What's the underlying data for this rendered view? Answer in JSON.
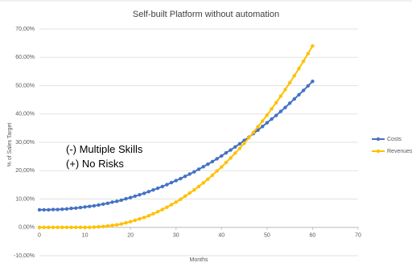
{
  "chart_data": {
    "type": "line",
    "title": "Self-built Platform without automation",
    "x_label": "Months",
    "y_label": "% of Sales Target",
    "annotations": [
      "(-) Multiple Skills",
      "(+) No Risks"
    ],
    "x": [
      0,
      1,
      2,
      3,
      4,
      5,
      6,
      7,
      8,
      9,
      10,
      11,
      12,
      13,
      14,
      15,
      16,
      17,
      18,
      19,
      20,
      21,
      22,
      23,
      24,
      25,
      26,
      27,
      28,
      29,
      30,
      31,
      32,
      33,
      34,
      35,
      36,
      37,
      38,
      39,
      40,
      41,
      42,
      43,
      44,
      45,
      46,
      47,
      48,
      49,
      50,
      51,
      52,
      53,
      54,
      55,
      56,
      57,
      58,
      59,
      60
    ],
    "series": [
      {
        "name": "Costs",
        "color": "#4472c4",
        "values": [
          6.2,
          6.2,
          6.2,
          6.3,
          6.3,
          6.4,
          6.5,
          6.7,
          6.8,
          7.0,
          7.2,
          7.4,
          7.6,
          7.9,
          8.2,
          8.5,
          8.9,
          9.2,
          9.6,
          10.1,
          10.5,
          11.0,
          11.5,
          12.0,
          12.6,
          13.2,
          13.8,
          14.4,
          15.1,
          15.8,
          16.5,
          17.2,
          18.0,
          18.8,
          19.6,
          20.5,
          21.4,
          22.3,
          23.2,
          24.2,
          25.2,
          26.3,
          27.3,
          28.4,
          29.5,
          30.7,
          31.8,
          33.1,
          34.3,
          35.6,
          36.9,
          38.2,
          39.5,
          40.9,
          42.3,
          43.8,
          45.3,
          46.8,
          48.3,
          49.9,
          51.5
        ]
      },
      {
        "name": "Revenues",
        "color": "#ffc000",
        "values": [
          0,
          0,
          0,
          0,
          0,
          0,
          0,
          0,
          0,
          0,
          0,
          0,
          0.1,
          0.2,
          0.3,
          0.5,
          0.7,
          0.9,
          1.2,
          1.6,
          2.0,
          2.5,
          3.0,
          3.5,
          4.1,
          4.8,
          5.5,
          6.3,
          7.1,
          8.0,
          8.9,
          9.9,
          11.0,
          12.1,
          13.2,
          14.4,
          15.7,
          17.0,
          18.4,
          19.9,
          21.3,
          22.9,
          24.5,
          26.2,
          27.9,
          29.7,
          31.6,
          33.5,
          35.5,
          37.5,
          39.6,
          41.8,
          44.0,
          46.3,
          48.6,
          51.0,
          53.5,
          56.0,
          58.6,
          61.3,
          64.0
        ]
      }
    ],
    "xlim": [
      0,
      70
    ],
    "xticks": [
      0,
      10,
      20,
      30,
      40,
      50,
      60,
      70
    ],
    "ylim": [
      -10,
      70
    ],
    "yticks": [
      {
        "value": -10,
        "label": "-10,00%"
      },
      {
        "value": 0,
        "label": "0,00%"
      },
      {
        "value": 10,
        "label": "10,00%"
      },
      {
        "value": 20,
        "label": "20,00%"
      },
      {
        "value": 30,
        "label": "30,00%"
      },
      {
        "value": 40,
        "label": "40,00%"
      },
      {
        "value": 50,
        "label": "50,00%"
      },
      {
        "value": 60,
        "label": "60,00%"
      },
      {
        "value": 70,
        "label": "70,00%"
      }
    ],
    "grid": true,
    "legend": "right"
  }
}
